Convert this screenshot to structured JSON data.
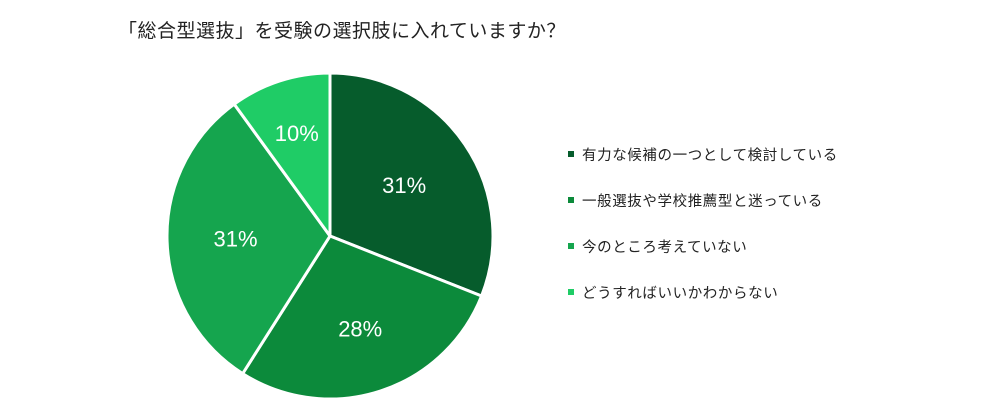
{
  "chart_data": {
    "type": "pie",
    "title": "「総合型選抜」を受験の選択肢に入れていますか？",
    "start_angle_deg": 0,
    "direction": "clockwise",
    "legend_position": "right",
    "slices": [
      {
        "label": "有力な候補の一つとして検討している",
        "value": 31,
        "display": "31%",
        "color": "#065c2c"
      },
      {
        "label": "一般選抜や学校推薦型と迷っている",
        "value": 28,
        "display": "28%",
        "color": "#0c8a3b"
      },
      {
        "label": "今のところ考えていない",
        "value": 31,
        "display": "31%",
        "color": "#15a54e"
      },
      {
        "label": "どうすればいいかわからない",
        "value": 10,
        "display": "10%",
        "color": "#1fcc66"
      }
    ]
  }
}
